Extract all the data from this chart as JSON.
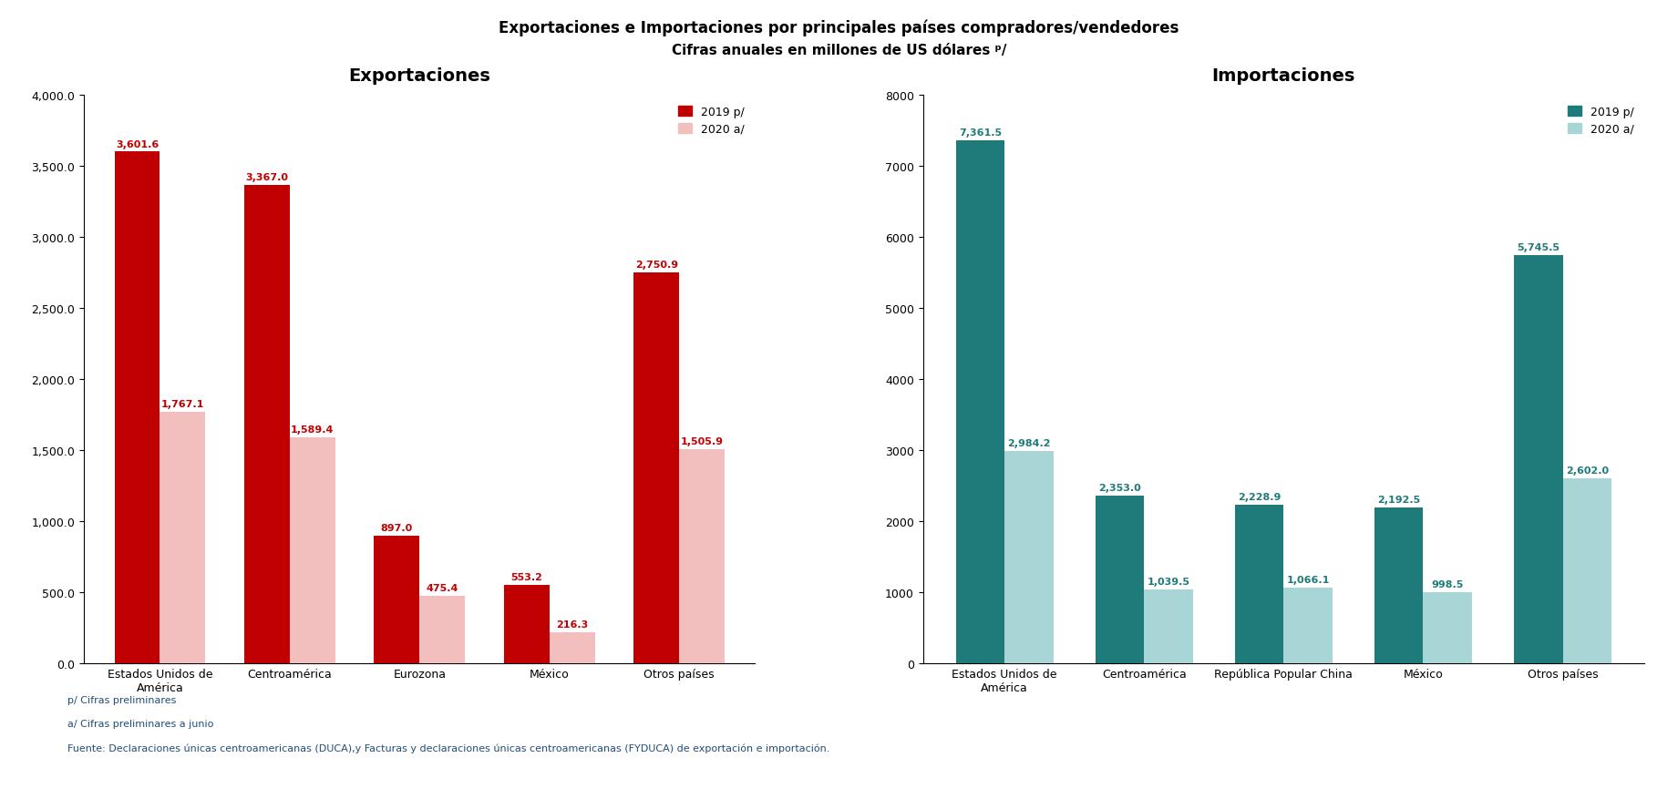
{
  "title_line1": "Exportaciones e Importaciones por principales países compradores/vendedores",
  "title_line2": "Cifras anuales en millones de US dólares ᵖ/",
  "exp_title": "Exportaciones",
  "imp_title": "Importaciones",
  "exp_categories": [
    "Estados Unidos de\nAmérica",
    "Centroamérica",
    "Eurozona",
    "México",
    "Otros países"
  ],
  "imp_categories": [
    "Estados Unidos de\nAmérica",
    "Centroamérica",
    "República Popular China",
    "México",
    "Otros países"
  ],
  "exp_2019": [
    3601.6,
    3367.0,
    897.0,
    553.2,
    2750.9
  ],
  "exp_2020": [
    1767.1,
    1589.4,
    475.4,
    216.3,
    1505.9
  ],
  "imp_2019": [
    7361.5,
    2353.0,
    2228.9,
    2192.5,
    5745.5
  ],
  "imp_2020": [
    2984.2,
    1039.5,
    1066.1,
    998.5,
    2602.0
  ],
  "exp_color_2019": "#C00000",
  "exp_color_2020": "#F2BEBE",
  "imp_color_2019": "#1F7A7A",
  "imp_color_2020": "#A8D5D5",
  "exp_ylim": [
    0,
    4000
  ],
  "imp_ylim": [
    0,
    8000
  ],
  "exp_yticks": [
    0,
    500,
    1000,
    1500,
    2000,
    2500,
    3000,
    3500,
    4000
  ],
  "imp_yticks": [
    0,
    1000,
    2000,
    3000,
    4000,
    5000,
    6000,
    7000,
    8000
  ],
  "legend_exp_2019": "2019 p/",
  "legend_exp_2020": "2020 a/",
  "legend_imp_2019": "2019 p/",
  "legend_imp_2020": "2020 a/",
  "footnote1": "p/ Cifras preliminares",
  "footnote2": "a/ Cifras preliminares a junio",
  "footnote3": "Fuente: Declaraciones únicas centroamericanas (DUCA),y Facturas y declaraciones únicas centroamericanas (FYDUCA) de exportación e importación."
}
